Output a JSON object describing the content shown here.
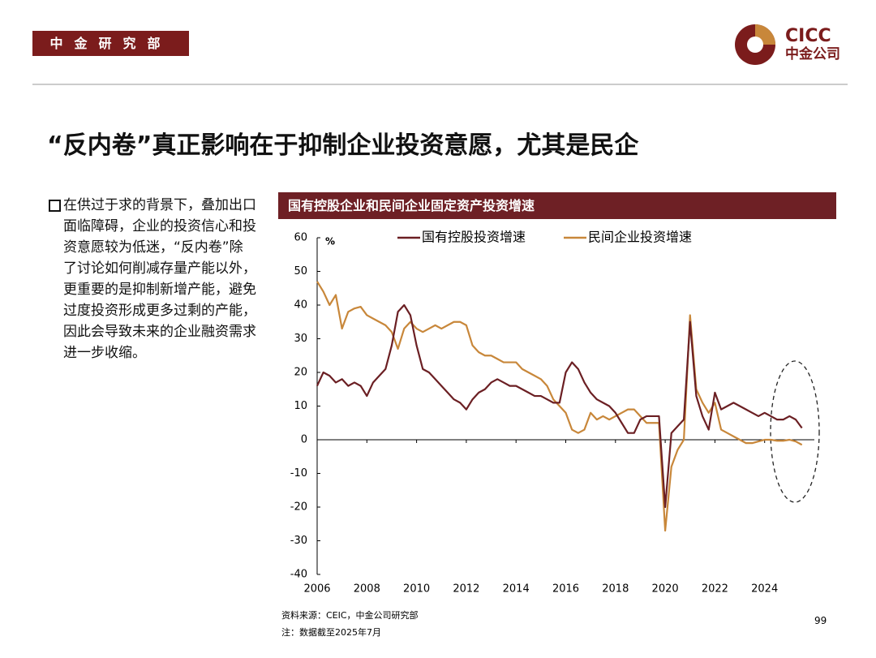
{
  "header": {
    "department": "中金研究部",
    "logo_en": "CICC",
    "logo_cn": "中金公司"
  },
  "slide_title": "“反内卷”真正影响在于抑制企业投资意愿，尤其是民企",
  "bullet": "在供过于求的背景下，叠加出口面临障碍，企业的投资信心和投资意愿较为低迷，“反内卷”除了讨论如何削减存量产能以外，更重要的是抑制新增产能，避免过度投资形成更多过剩的产能，因此会导致未来的企业融资需求进一步收缩。",
  "chart_data": {
    "type": "line",
    "title": "国有控股企业和民间企业固定资产投资增速",
    "y_unit": "%",
    "x": [
      2006,
      2006.25,
      2006.5,
      2006.75,
      2007,
      2007.25,
      2007.5,
      2007.75,
      2008,
      2008.25,
      2008.5,
      2008.75,
      2009,
      2009.25,
      2009.5,
      2009.75,
      2010,
      2010.25,
      2010.5,
      2010.75,
      2011,
      2011.25,
      2011.5,
      2011.75,
      2012,
      2012.25,
      2012.5,
      2012.75,
      2013,
      2013.25,
      2013.5,
      2013.75,
      2014,
      2014.25,
      2014.5,
      2014.75,
      2015,
      2015.25,
      2015.5,
      2015.75,
      2016,
      2016.25,
      2016.5,
      2016.75,
      2017,
      2017.25,
      2017.5,
      2017.75,
      2018,
      2018.25,
      2018.5,
      2018.75,
      2019,
      2019.25,
      2019.5,
      2019.75,
      2020,
      2020.25,
      2020.5,
      2020.75,
      2021,
      2021.25,
      2021.5,
      2021.75,
      2022,
      2022.25,
      2022.5,
      2022.75,
      2023,
      2023.25,
      2023.5,
      2023.75,
      2024,
      2024.25,
      2024.5,
      2024.75,
      2025,
      2025.25,
      2025.5
    ],
    "series": [
      {
        "name": "国有控股投资增速",
        "color": "#6b1f23",
        "values": [
          16,
          20,
          19,
          17,
          18,
          16,
          17,
          16,
          13,
          17,
          19,
          21,
          28,
          38,
          40,
          37,
          28,
          21,
          20,
          18,
          16,
          14,
          12,
          11,
          9,
          12,
          14,
          15,
          17,
          18,
          17,
          16,
          16,
          15,
          14,
          13,
          13,
          12,
          11,
          11,
          20,
          23,
          21,
          17,
          14,
          12,
          11,
          10,
          8,
          5,
          2,
          2,
          6,
          7,
          7,
          7,
          -20,
          2,
          4,
          6,
          35,
          13,
          7,
          3,
          14,
          9,
          10,
          11,
          10,
          9,
          8,
          7,
          8,
          7,
          6,
          6,
          7,
          6,
          3.5
        ]
      },
      {
        "name": "民间企业投资增速",
        "color": "#c8873a",
        "values": [
          47,
          44,
          40,
          43,
          33,
          38,
          39,
          39.5,
          37,
          36,
          35,
          34,
          32,
          27,
          33,
          35,
          33,
          32,
          33,
          34,
          33,
          34,
          35,
          35,
          34,
          28,
          26,
          25,
          25,
          24,
          23,
          23,
          23,
          21,
          20,
          19,
          18,
          16,
          12,
          10,
          8,
          3,
          2,
          3,
          8,
          6,
          7,
          6,
          7,
          8,
          9,
          9,
          7,
          5,
          5,
          5,
          -27,
          -8,
          -3,
          0,
          37,
          15,
          11,
          8,
          11,
          3,
          2,
          1,
          0,
          -1,
          -1,
          -0.5,
          0,
          0,
          -0.3,
          -0.3,
          0,
          -0.5,
          -1.5
        ]
      }
    ],
    "xlim": [
      2006,
      2026
    ],
    "xticks": [
      2006,
      2008,
      2010,
      2012,
      2014,
      2016,
      2018,
      2020,
      2022,
      2024
    ],
    "ylim": [
      -40,
      60
    ],
    "yticks": [
      -40,
      -30,
      -20,
      -10,
      0,
      10,
      20,
      30,
      40,
      50,
      60
    ]
  },
  "footer": {
    "source": "资料来源：CEIC，中金公司研究部",
    "note": "注：数据截至2025年7月",
    "page": "99"
  }
}
